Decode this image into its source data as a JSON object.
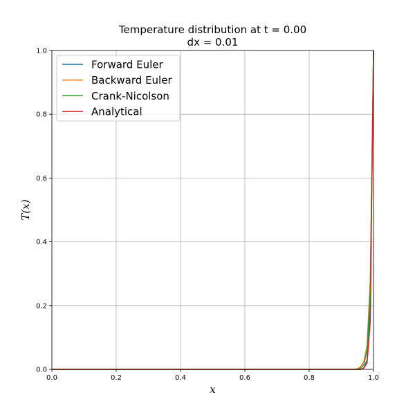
{
  "chart_data": {
    "type": "line",
    "title": "Temperature distribution at t = 0.00",
    "subtitle": "dx = 0.01",
    "xlabel": "x",
    "ylabel": "T(x)",
    "xlim": [
      0.0,
      1.0
    ],
    "ylim": [
      0.0,
      1.0
    ],
    "xticks": [
      "0.0",
      "0.2",
      "0.4",
      "0.6",
      "0.8",
      "1.0"
    ],
    "yticks": [
      "0.0",
      "0.2",
      "0.4",
      "0.6",
      "0.8",
      "1.0"
    ],
    "grid": true,
    "legend_position": "top-left",
    "series": [
      {
        "name": "Forward Euler",
        "color": "#1f77b4",
        "x": [
          0.0,
          0.96,
          0.97,
          0.98,
          0.99,
          1.0
        ],
        "y": [
          0.0,
          0.0,
          0.005,
          0.03,
          0.2,
          1.0
        ]
      },
      {
        "name": "Backward Euler",
        "color": "#ff7f0e",
        "x": [
          0.0,
          0.94,
          0.95,
          0.96,
          0.97,
          0.98,
          0.99,
          1.0
        ],
        "y": [
          0.0,
          0.0,
          0.002,
          0.008,
          0.025,
          0.075,
          0.28,
          1.0
        ]
      },
      {
        "name": "Crank-Nicolson",
        "color": "#2ca02c",
        "x": [
          0.0,
          0.95,
          0.96,
          0.97,
          0.98,
          0.99,
          1.0
        ],
        "y": [
          0.0,
          0.0,
          0.004,
          0.015,
          0.06,
          0.25,
          1.0
        ]
      },
      {
        "name": "Analytical",
        "color": "#d62728",
        "x": [
          0.0,
          0.96,
          0.97,
          0.98,
          0.99,
          1.0
        ],
        "y": [
          0.0,
          0.0,
          0.004,
          0.02,
          0.15,
          1.0
        ]
      }
    ]
  }
}
